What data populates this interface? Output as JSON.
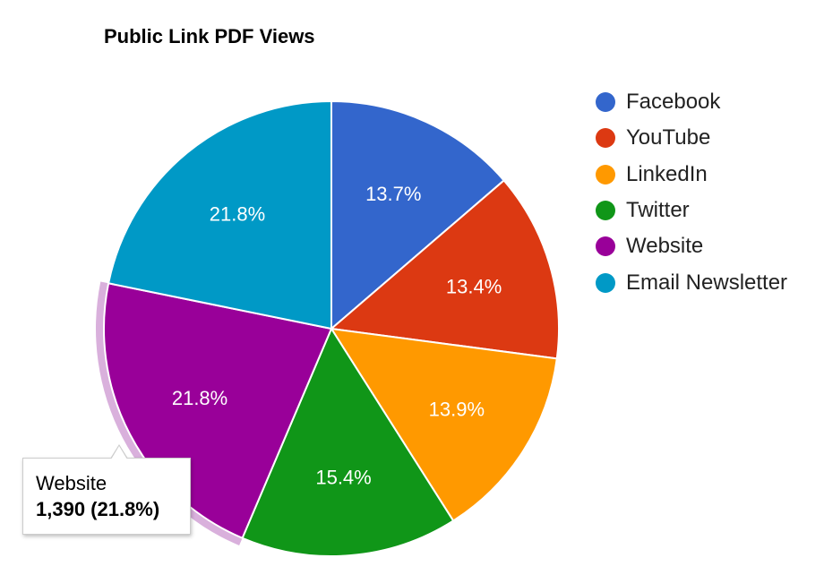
{
  "chart_data": {
    "type": "pie",
    "title": "Public Link PDF Views",
    "slices": [
      {
        "name": "Facebook",
        "value": 13.7,
        "label": "13.7%",
        "color": "#3366cc"
      },
      {
        "name": "YouTube",
        "value": 13.4,
        "label": "13.4%",
        "color": "#dc3912"
      },
      {
        "name": "LinkedIn",
        "value": 13.9,
        "label": "13.9%",
        "color": "#ff9900"
      },
      {
        "name": "Twitter",
        "value": 15.4,
        "label": "15.4%",
        "color": "#109618"
      },
      {
        "name": "Website",
        "value": 21.8,
        "label": "21.8%",
        "color": "#990099"
      },
      {
        "name": "Email Newsletter",
        "value": 21.8,
        "label": "21.8%",
        "color": "#0099c6"
      }
    ],
    "highlighted": "Website",
    "highlight_color": "#d9b0dc",
    "legend_position": "right"
  },
  "tooltip": {
    "name": "Website",
    "value": "1,390 (21.8%)"
  }
}
